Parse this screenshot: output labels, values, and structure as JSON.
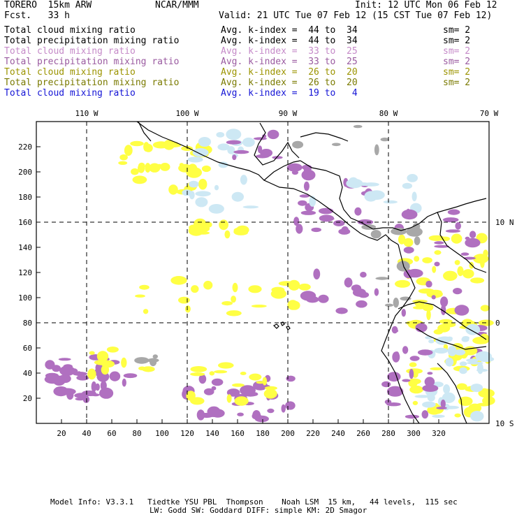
{
  "header": {
    "model": "TORERO  15km ARW",
    "center": "NCAR/MMM",
    "init": "Init: 12 UTC Mon 06 Feb 12",
    "fcst": "Fcst.   33 h",
    "valid": "Valid: 21 UTC Tue 07 Feb 12 (15 CST Tue 07 Feb 12)"
  },
  "legend": [
    {
      "field": "Total cloud mixing ratio",
      "index": "Avg. k-index =  44 to  34",
      "sm": "sm= 2",
      "color": "#000000"
    },
    {
      "field": "Total precipitation mixing ratio",
      "index": "Avg. k-index =  44 to  34",
      "sm": "sm= 2",
      "color": "#000000"
    },
    {
      "field": "Total cloud mixing ratio",
      "index": "Avg. k-index =  33 to  25",
      "sm": "sm= 2",
      "color": "#c58ac8"
    },
    {
      "field": "Total precipitation mixing ratio",
      "index": "Avg. k-index =  33 to  25",
      "sm": "sm= 2",
      "color": "#9a5aa0"
    },
    {
      "field": "Total cloud mixing ratio",
      "index": "Avg. k-index =  26 to  20",
      "sm": "sm= 2",
      "color": "#9c9400"
    },
    {
      "field": "Total precipitation mixing ratio",
      "index": "Avg. k-index =  26 to  20",
      "sm": "sm= 2",
      "color": "#7a7a00"
    },
    {
      "field": "Total cloud mixing ratio",
      "index": "Avg. k-index =  19 to   4",
      "sm": "",
      "color": "#1515d6"
    }
  ],
  "map": {
    "lon_labels": [
      "110 W",
      "100 W",
      "90 W",
      "80 W",
      "70 W"
    ],
    "lat_labels": [
      "10 N",
      "0",
      "10 S"
    ],
    "x_ticks": [
      "20",
      "40",
      "60",
      "80",
      "100",
      "120",
      "140",
      "160",
      "180",
      "200",
      "220",
      "240",
      "260",
      "280",
      "300",
      "320"
    ],
    "y_ticks": [
      "20",
      "40",
      "60",
      "80",
      "100",
      "120",
      "140",
      "160",
      "180",
      "200",
      "220"
    ],
    "colors": {
      "yellow": "#ffff44",
      "purple": "#b070c0",
      "gray": "#a8a8a8",
      "lightblue": "#cde8f4"
    }
  },
  "footer": {
    "line1": "Model Info: V3.3.1   Tiedtke YSU PBL  Thompson    Noah LSM  15 km,   44 levels,  115 sec",
    "line2": "LW: Godd SW: Goddard DIFF: simple KM: 2D Smagor"
  }
}
